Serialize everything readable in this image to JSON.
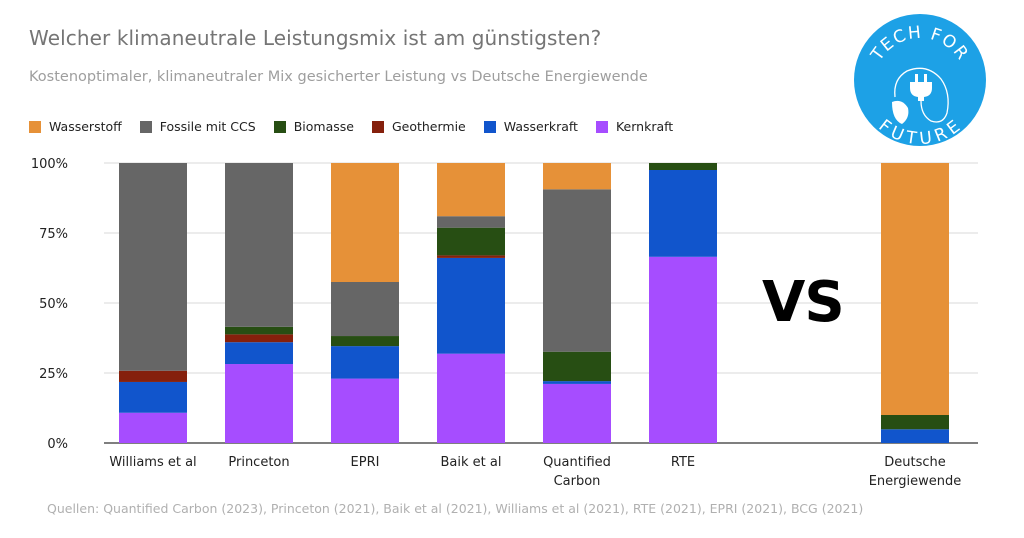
{
  "header": {
    "title": "Welcher klimaneutrale Leistungsmix ist am günstigsten?",
    "subtitle": "Kostenoptimaler, klimaneutraler Mix gesicherter Leistung vs Deutsche Energiewende"
  },
  "logo": {
    "top_text": "TECH FOR",
    "bottom_text": "FUTURE",
    "icon": "plug-leaf-icon",
    "color": "#1DA1E6"
  },
  "vs_label": "VS",
  "sources": "Quellen: Quantified Carbon (2023), Princeton (2021), Baik et al  (2021), Williams et al (2021), RTE  (2021), EPRI  (2021), BCG (2021)",
  "chart_data": {
    "type": "bar",
    "stacked": true,
    "title": "Welcher klimaneutrale Leistungsmix ist am günstigsten?",
    "subtitle": "Kostenoptimaler, klimaneutraler Mix gesicherter Leistung vs Deutsche Energiewende",
    "xlabel": "",
    "ylabel": "",
    "ylim": [
      0,
      100
    ],
    "yticks": [
      "0%",
      "25%",
      "50%",
      "75%",
      "100%"
    ],
    "grid": true,
    "legend_position": "top-left",
    "categories": [
      [
        "Williams et al"
      ],
      [
        "Princeton"
      ],
      [
        "EPRI"
      ],
      [
        "Baik et al"
      ],
      [
        "Quantified",
        "Carbon"
      ],
      [
        "RTE"
      ],
      [
        "Deutsche",
        "Energiewende"
      ]
    ],
    "series": [
      {
        "name": "Kernkraft",
        "color": "#A64DFF",
        "values": [
          10.8,
          28.2,
          23.0,
          31.9,
          21.1,
          66.5,
          0
        ]
      },
      {
        "name": "Wasserkraft",
        "color": "#1155CC",
        "values": [
          11.0,
          7.8,
          11.6,
          34.2,
          1.0,
          31.0,
          4.9
        ]
      },
      {
        "name": "Geothermie",
        "color": "#85200C",
        "values": [
          4.0,
          2.8,
          0,
          0.9,
          0,
          0,
          0
        ]
      },
      {
        "name": "Biomasse",
        "color": "#274E13",
        "values": [
          0,
          2.7,
          3.6,
          9.9,
          10.5,
          2.5,
          5.1
        ]
      },
      {
        "name": "Fossile mit CCS",
        "color": "#666666",
        "values": [
          74.2,
          58.5,
          19.3,
          4.1,
          58.0,
          0,
          0
        ]
      },
      {
        "name": "Wasserstoff",
        "color": "#E69138",
        "values": [
          0,
          0,
          42.5,
          19.0,
          9.4,
          0,
          90.0
        ]
      }
    ],
    "legend_order": [
      "Wasserstoff",
      "Fossile mit CCS",
      "Biomasse",
      "Geothermie",
      "Wasserkraft",
      "Kernkraft"
    ]
  }
}
